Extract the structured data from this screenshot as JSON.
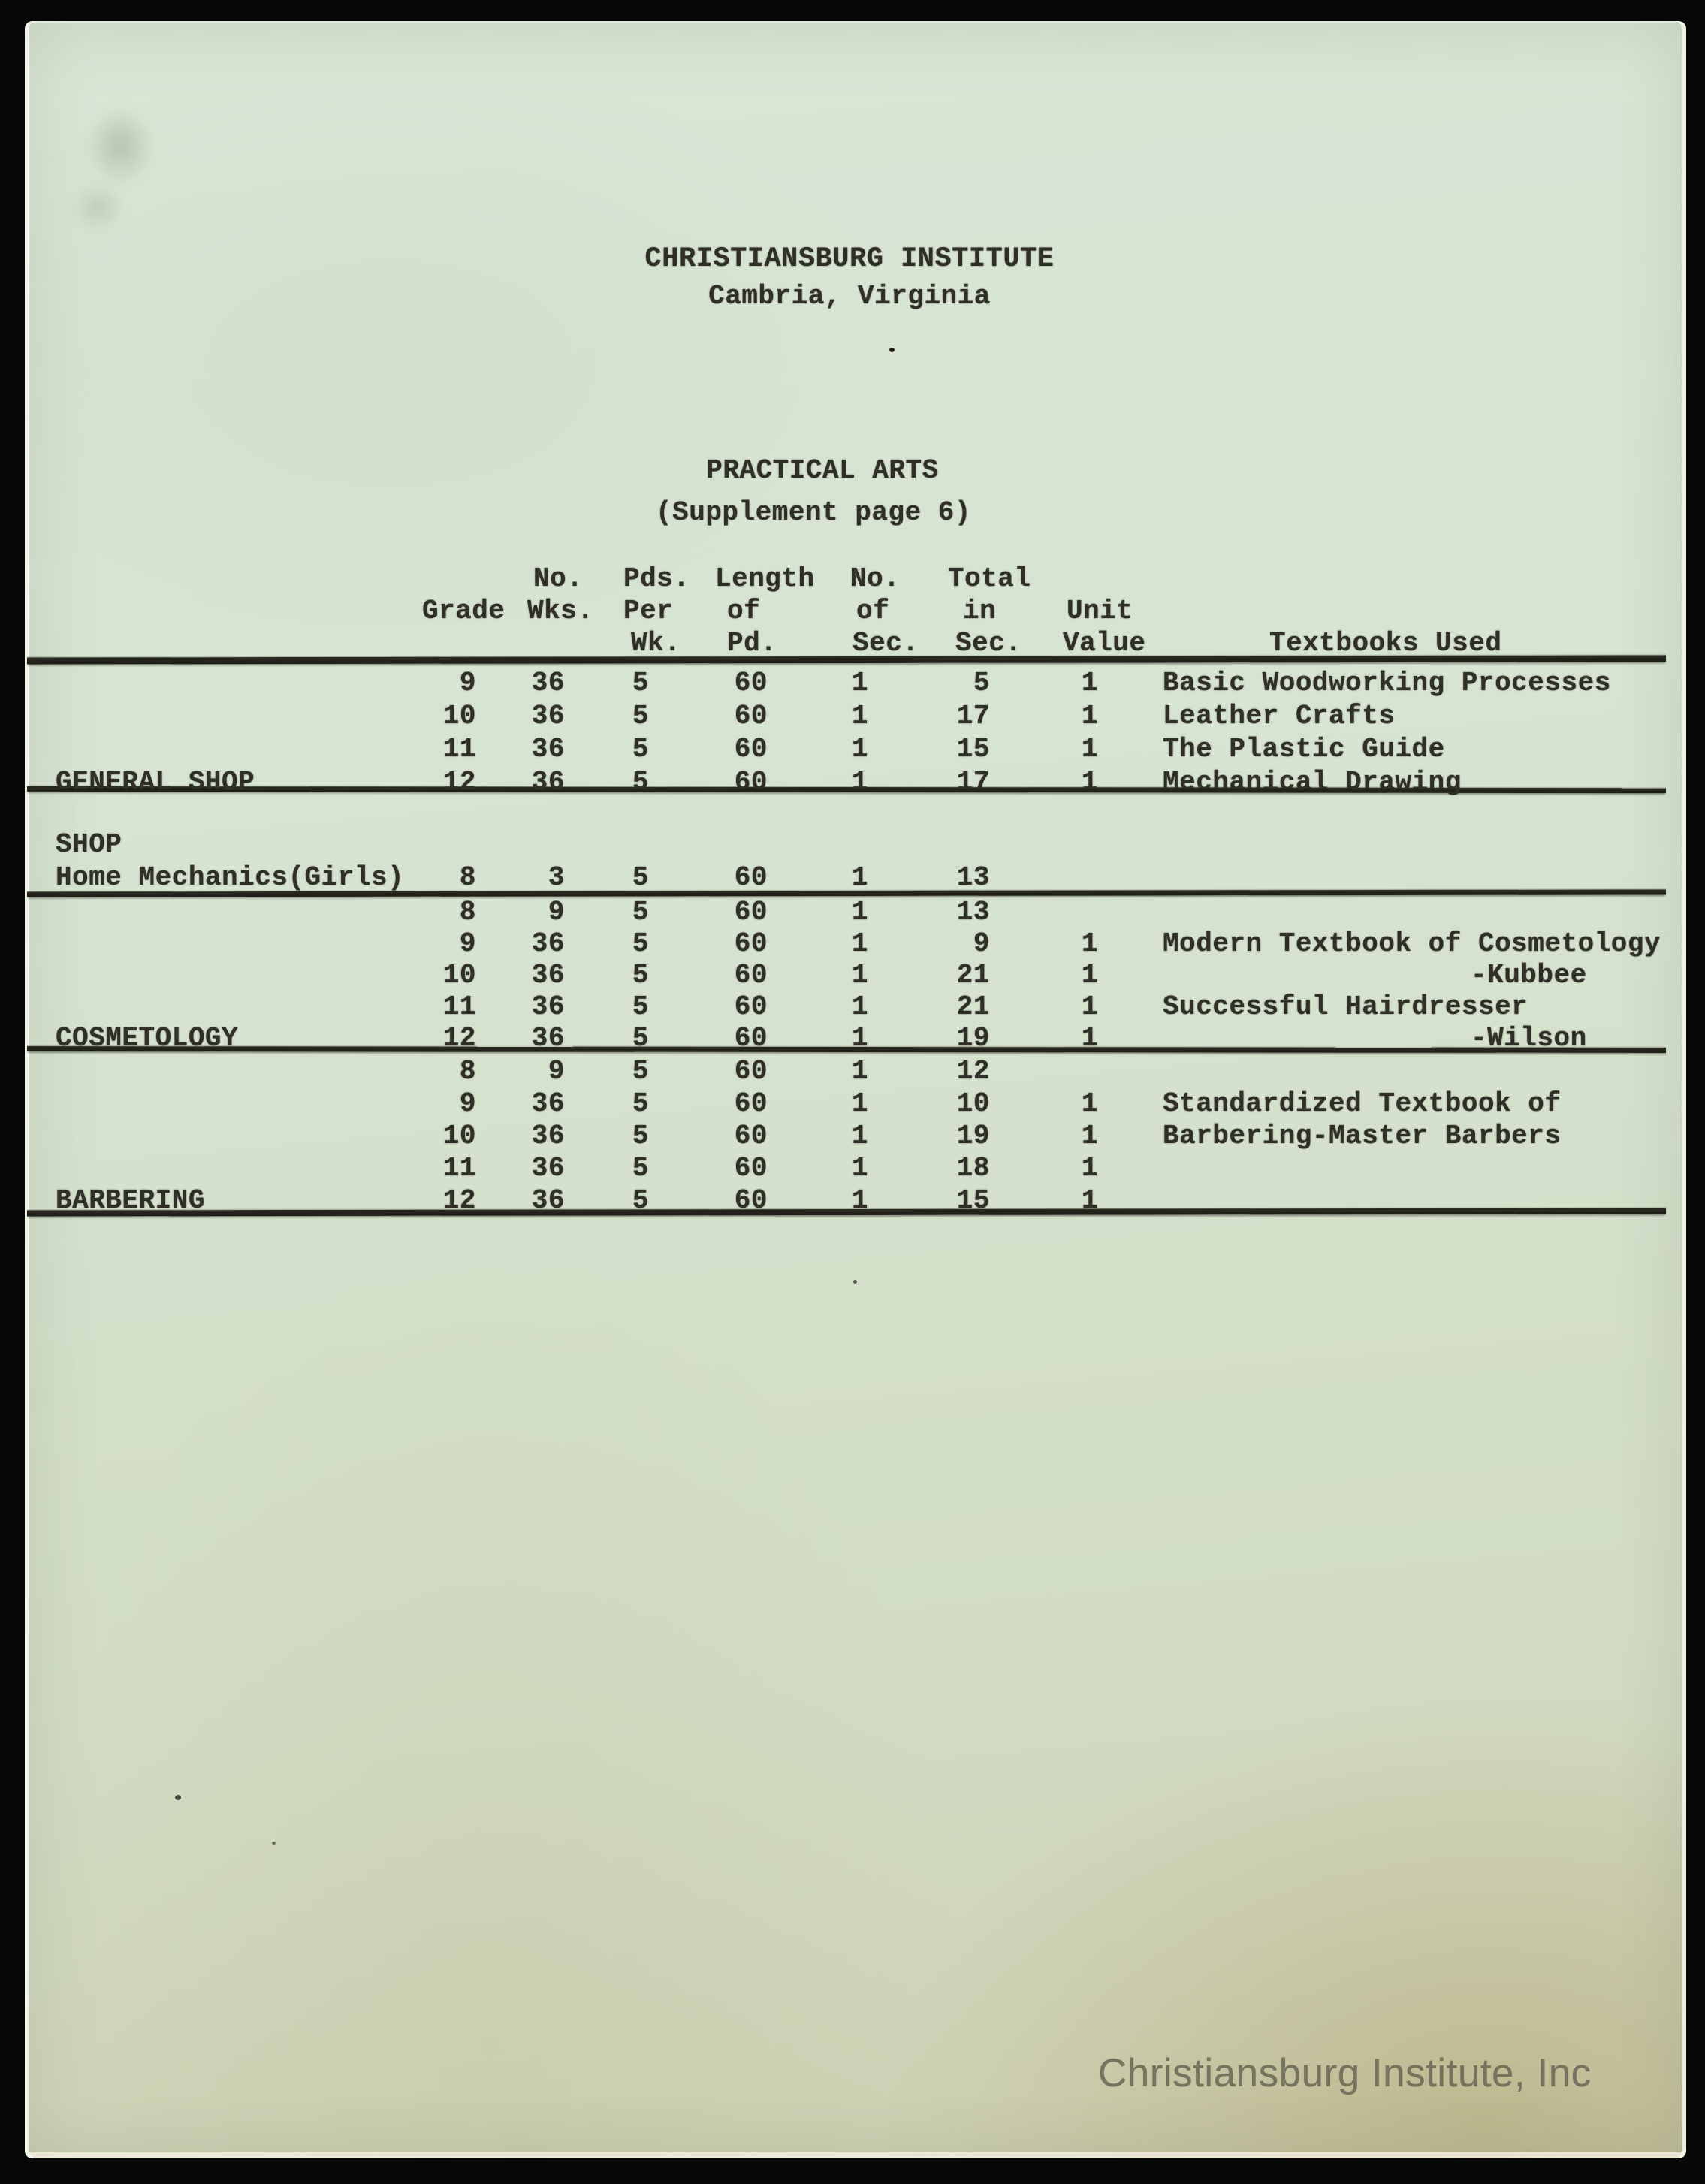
{
  "colors": {
    "paper": "#d7e3d1",
    "ink": "#2f2e27",
    "watermark_text": "#76735f",
    "background": "#070707"
  },
  "header": {
    "institution": "CHRISTIANSBURG INSTITUTE",
    "location": "Cambria, Virginia",
    "title": "PRACTICAL ARTS",
    "subtitle": "(Supplement page 6)"
  },
  "columns": {
    "grade": "Grade",
    "no_wks": [
      "No.",
      "Wks."
    ],
    "pds_per_wk": [
      "Pds.",
      "Per",
      "Wk."
    ],
    "length_of_pd": [
      "Length",
      "of",
      "Pd."
    ],
    "no_of_sec": [
      "No.",
      "of",
      "Sec."
    ],
    "total_in_sec": [
      "Total",
      "in",
      "Sec."
    ],
    "unit_value": [
      "Unit",
      "Value"
    ],
    "textbooks": "Textbooks Used"
  },
  "sections": [
    {
      "label": "GENERAL SHOP",
      "label_row": 3,
      "rows": [
        {
          "grade": "9",
          "wks": "36",
          "pds": "5",
          "len": "60",
          "sec": "1",
          "total": "5",
          "unit": "1",
          "textbook": "Basic Woodworking Processes"
        },
        {
          "grade": "10",
          "wks": "36",
          "pds": "5",
          "len": "60",
          "sec": "1",
          "total": "17",
          "unit": "1",
          "textbook": "Leather Crafts"
        },
        {
          "grade": "11",
          "wks": "36",
          "pds": "5",
          "len": "60",
          "sec": "1",
          "total": "15",
          "unit": "1",
          "textbook": "The Plastic Guide"
        },
        {
          "grade": "12",
          "wks": "36",
          "pds": "5",
          "len": "60",
          "sec": "1",
          "total": "17",
          "unit": "1",
          "textbook": "Mechanical Drawing"
        }
      ]
    },
    {
      "heading": "SHOP",
      "label": "Home Mechanics(Girls)",
      "label_row": 0,
      "rows": [
        {
          "grade": "8",
          "wks": "3",
          "pds": "5",
          "len": "60",
          "sec": "1",
          "total": "13",
          "unit": "",
          "textbook": ""
        }
      ]
    },
    {
      "label": "COSMETOLOGY",
      "label_row": 4,
      "rows": [
        {
          "grade": "8",
          "wks": "9",
          "pds": "5",
          "len": "60",
          "sec": "1",
          "total": "13",
          "unit": "",
          "textbook": ""
        },
        {
          "grade": "9",
          "wks": "36",
          "pds": "5",
          "len": "60",
          "sec": "1",
          "total": "9",
          "unit": "1",
          "textbook": "Modern Textbook of Cosmetology"
        },
        {
          "grade": "10",
          "wks": "36",
          "pds": "5",
          "len": "60",
          "sec": "1",
          "total": "21",
          "unit": "1",
          "textbook": "-Kubbee",
          "textbook_indent": true
        },
        {
          "grade": "11",
          "wks": "36",
          "pds": "5",
          "len": "60",
          "sec": "1",
          "total": "21",
          "unit": "1",
          "textbook": "Successful Hairdresser"
        },
        {
          "grade": "12",
          "wks": "36",
          "pds": "5",
          "len": "60",
          "sec": "1",
          "total": "19",
          "unit": "1",
          "textbook": "-Wilson",
          "textbook_indent": true
        }
      ]
    },
    {
      "label": "BARBERING",
      "label_row": 4,
      "rows": [
        {
          "grade": "8",
          "wks": "9",
          "pds": "5",
          "len": "60",
          "sec": "1",
          "total": "12",
          "unit": "",
          "textbook": ""
        },
        {
          "grade": "9",
          "wks": "36",
          "pds": "5",
          "len": "60",
          "sec": "1",
          "total": "10",
          "unit": "1",
          "textbook": "Standardized Textbook of"
        },
        {
          "grade": "10",
          "wks": "36",
          "pds": "5",
          "len": "60",
          "sec": "1",
          "total": "19",
          "unit": "1",
          "textbook": "Barbering-Master Barbers"
        },
        {
          "grade": "11",
          "wks": "36",
          "pds": "5",
          "len": "60",
          "sec": "1",
          "total": "18",
          "unit": "1",
          "textbook": ""
        },
        {
          "grade": "12",
          "wks": "36",
          "pds": "5",
          "len": "60",
          "sec": "1",
          "total": "15",
          "unit": "1",
          "textbook": ""
        }
      ]
    }
  ],
  "watermark": "Christiansburg Institute, Inc"
}
